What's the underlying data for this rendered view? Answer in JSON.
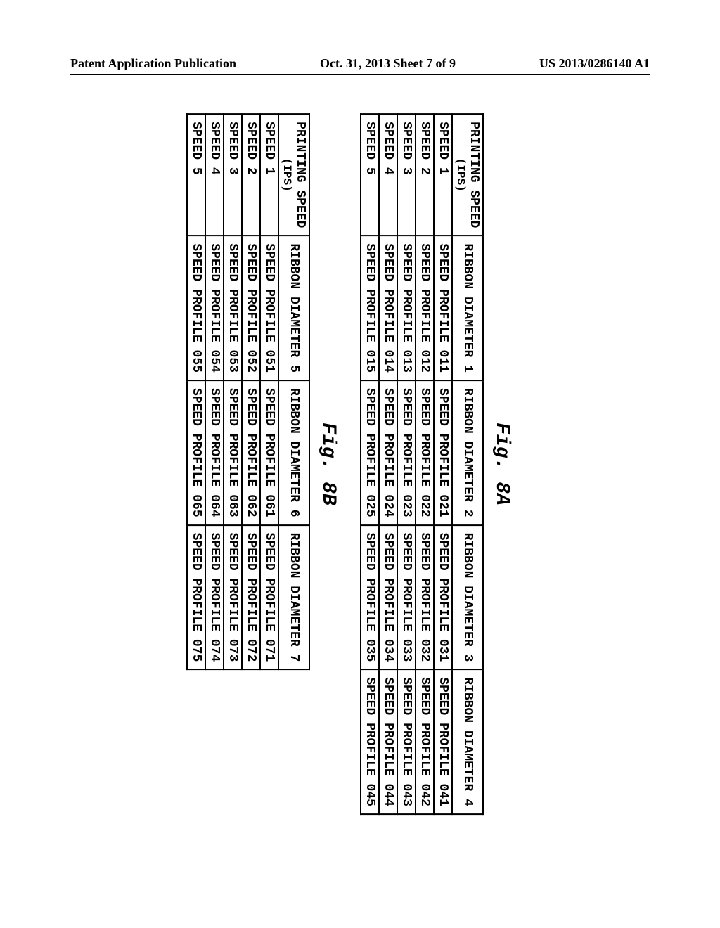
{
  "header": {
    "left": "Patent Application Publication",
    "center": "Oct. 31, 2013  Sheet 7 of 9",
    "right": "US 2013/0286140 A1"
  },
  "figA": {
    "label": "Fig. 8A",
    "col0_line1": "PRINTING SPEED",
    "col0_line2": "(IPS)",
    "headers": [
      "RIBBON DIAMETER 1",
      "RIBBON DIAMETER 2",
      "RIBBON DIAMETER 3",
      "RIBBON DIAMETER 4"
    ],
    "rows": [
      {
        "speed": "SPEED 1",
        "cells": [
          "SPEED PROFILE 011",
          "SPEED PROFILE 021",
          "SPEED PROFILE 031",
          "SPEED PROFILE 041"
        ]
      },
      {
        "speed": "SPEED 2",
        "cells": [
          "SPEED PROFILE 012",
          "SPEED PROFILE 022",
          "SPEED PROFILE 032",
          "SPEED PROFILE 042"
        ]
      },
      {
        "speed": "SPEED 3",
        "cells": [
          "SPEED PROFILE 013",
          "SPEED PROFILE 023",
          "SPEED PROFILE 033",
          "SPEED PROFILE 043"
        ]
      },
      {
        "speed": "SPEED 4",
        "cells": [
          "SPEED PROFILE 014",
          "SPEED PROFILE 024",
          "SPEED PROFILE 034",
          "SPEED PROFILE 044"
        ]
      },
      {
        "speed": "SPEED 5",
        "cells": [
          "SPEED PROFILE 015",
          "SPEED PROFILE 025",
          "SPEED PROFILE 035",
          "SPEED PROFILE 045"
        ]
      }
    ]
  },
  "figB": {
    "label": "Fig. 8B",
    "col0_line1": "PRINTING SPEED",
    "col0_line2": "(IPS)",
    "headers": [
      "RIBBON DIAMETER 5",
      "RIBBON DIAMETER 6",
      "RIBBON DIAMETER 7"
    ],
    "rows": [
      {
        "speed": "SPEED 1",
        "cells": [
          "SPEED PROFILE 051",
          "SPEED PROFILE 061",
          "SPEED PROFILE 071"
        ]
      },
      {
        "speed": "SPEED 2",
        "cells": [
          "SPEED PROFILE 052",
          "SPEED PROFILE 062",
          "SPEED PROFILE 072"
        ]
      },
      {
        "speed": "SPEED 3",
        "cells": [
          "SPEED PROFILE 053",
          "SPEED PROFILE 063",
          "SPEED PROFILE 073"
        ]
      },
      {
        "speed": "SPEED 4",
        "cells": [
          "SPEED PROFILE 054",
          "SPEED PROFILE 064",
          "SPEED PROFILE 074"
        ]
      },
      {
        "speed": "SPEED 5",
        "cells": [
          "SPEED PROFILE 055",
          "SPEED PROFILE 065",
          "SPEED PROFILE 075"
        ]
      }
    ]
  }
}
